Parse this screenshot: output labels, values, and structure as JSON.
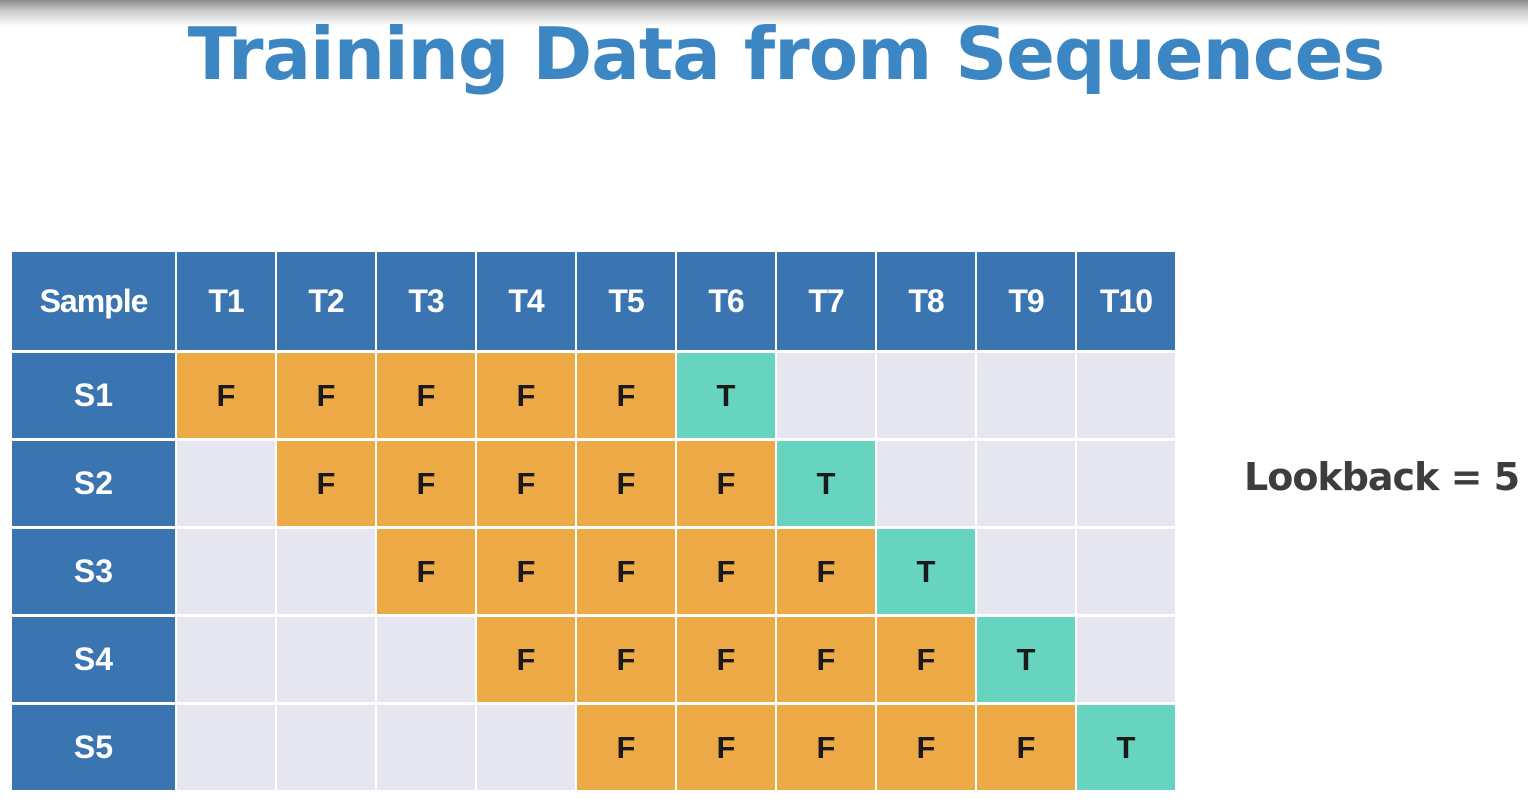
{
  "title": "Training Data from Sequences",
  "table": {
    "corner_label": "Sample",
    "columns": [
      "T1",
      "T2",
      "T3",
      "T4",
      "T5",
      "T6",
      "T7",
      "T8",
      "T9",
      "T10"
    ],
    "rows": [
      {
        "label": "S1",
        "cells": [
          "F",
          "F",
          "F",
          "F",
          "F",
          "T",
          "",
          "",
          "",
          ""
        ]
      },
      {
        "label": "S2",
        "cells": [
          "",
          "F",
          "F",
          "F",
          "F",
          "F",
          "T",
          "",
          "",
          ""
        ]
      },
      {
        "label": "S3",
        "cells": [
          "",
          "",
          "F",
          "F",
          "F",
          "F",
          "F",
          "T",
          "",
          ""
        ]
      },
      {
        "label": "S4",
        "cells": [
          "",
          "",
          "",
          "F",
          "F",
          "F",
          "F",
          "F",
          "T",
          ""
        ]
      },
      {
        "label": "S5",
        "cells": [
          "",
          "",
          "",
          "",
          "F",
          "F",
          "F",
          "F",
          "F",
          "T"
        ]
      }
    ]
  },
  "lookback_label": "Lookback = 5",
  "colors": {
    "header_blue": "#3a74b1",
    "title_blue": "#3b86c3",
    "feature_orange": "#eea947",
    "target_teal": "#67d4bf",
    "empty_gray": "#e5e6ef"
  }
}
